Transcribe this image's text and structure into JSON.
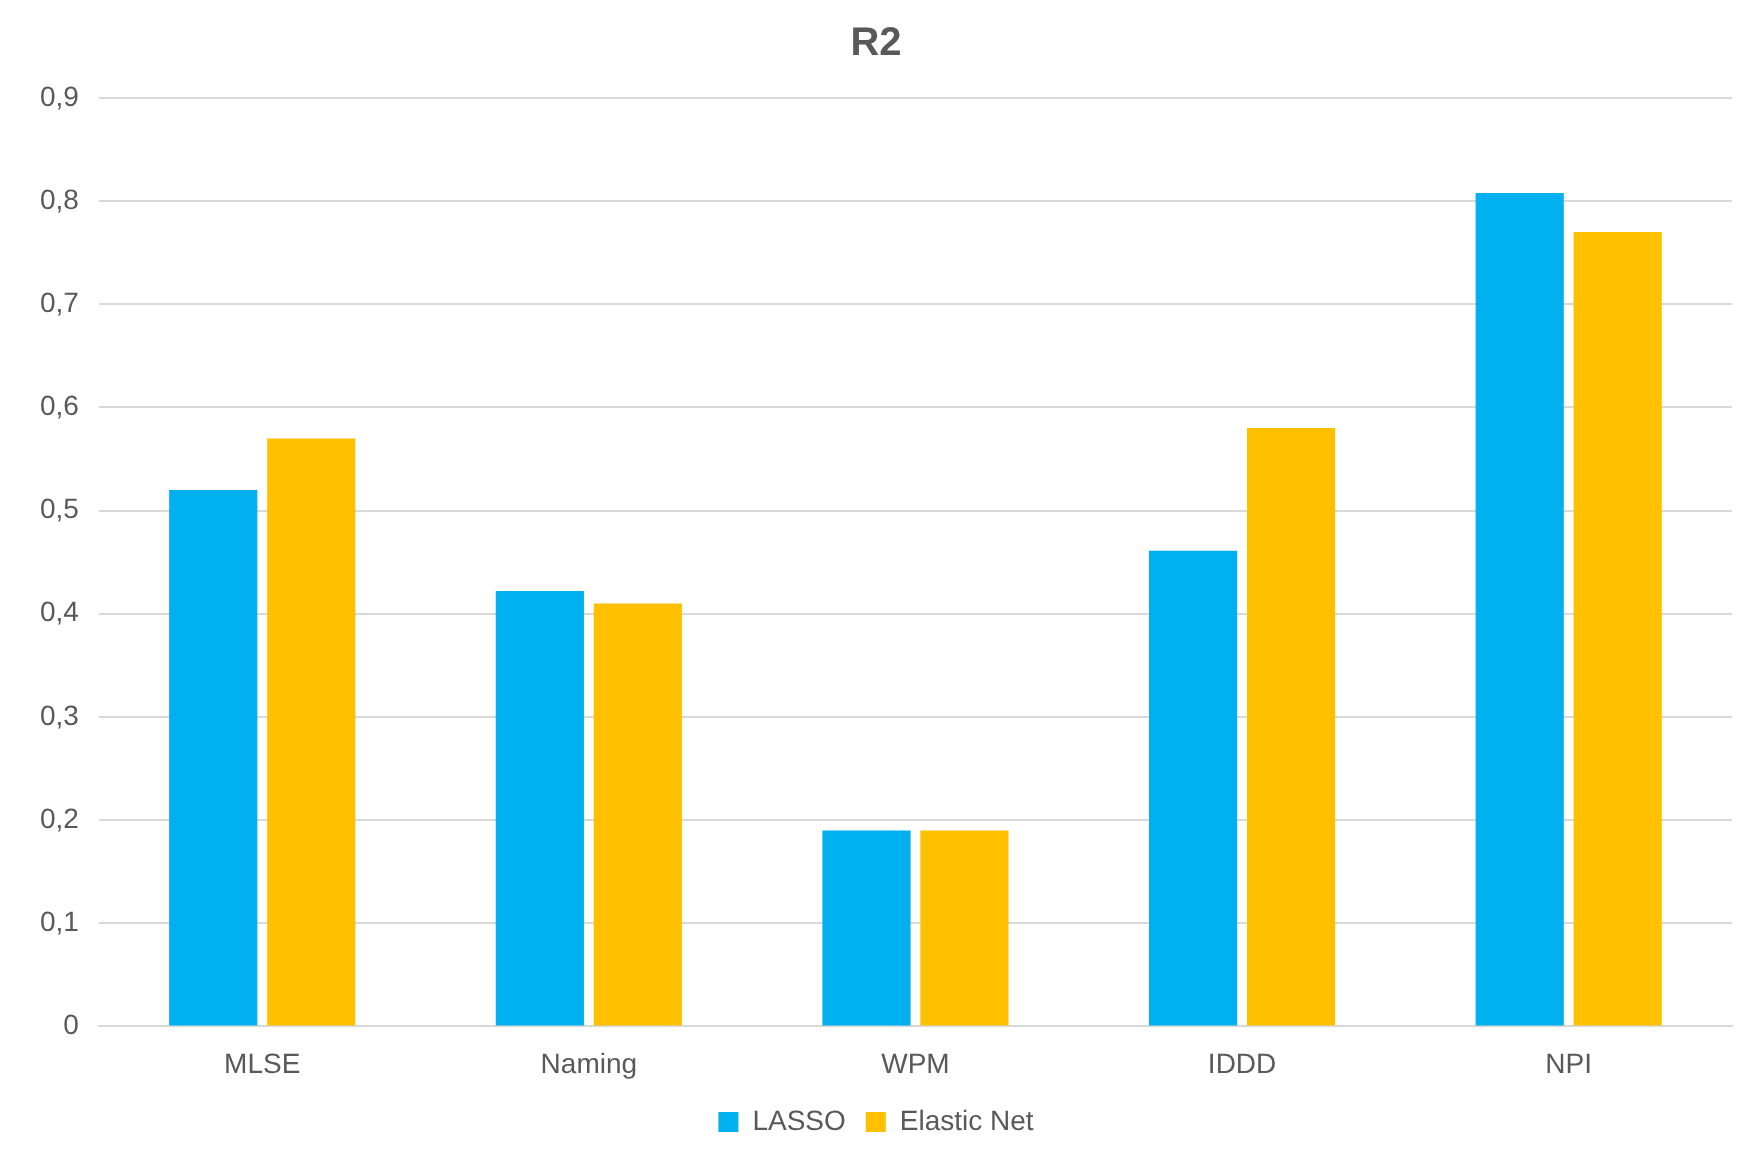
{
  "chart_data": {
    "type": "bar",
    "title": "R2",
    "categories": [
      "MLSE",
      "Naming",
      "WPM",
      "IDDD",
      "NPI"
    ],
    "series": [
      {
        "name": "LASSO",
        "color": "#00b0f0",
        "values": [
          0.52,
          0.422,
          0.19,
          0.461,
          0.808
        ]
      },
      {
        "name": "Elastic Net",
        "color": "#ffc000",
        "values": [
          0.57,
          0.41,
          0.19,
          0.58,
          0.77
        ]
      }
    ],
    "ylim": [
      0,
      0.9
    ],
    "yticks": [
      {
        "value": 0,
        "label": "0"
      },
      {
        "value": 0.1,
        "label": "0,1"
      },
      {
        "value": 0.2,
        "label": "0,2"
      },
      {
        "value": 0.3,
        "label": "0,3"
      },
      {
        "value": 0.4,
        "label": "0,4"
      },
      {
        "value": 0.5,
        "label": "0,5"
      },
      {
        "value": 0.6,
        "label": "0,6"
      },
      {
        "value": 0.7,
        "label": "0,7"
      },
      {
        "value": 0.8,
        "label": "0,8"
      },
      {
        "value": 0.9,
        "label": "0,9"
      }
    ],
    "grid": "y",
    "legend": "bottom"
  }
}
